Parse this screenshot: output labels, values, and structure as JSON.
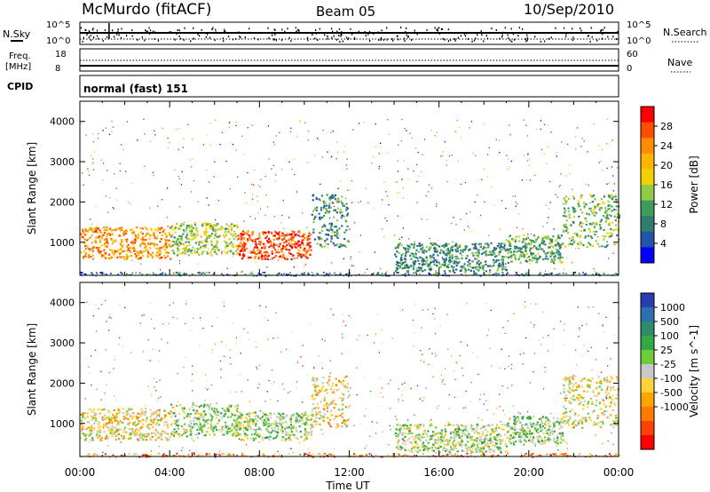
{
  "header": {
    "station": "McMurdo (fitACF)",
    "beam": "Beam 05",
    "date": "10/Sep/2010"
  },
  "top_panel": {
    "left_label": "N.Sky",
    "right_label": "N.Search",
    "left_ticks": [
      "10^5",
      "10^0"
    ],
    "right_ticks": [
      "10^5",
      "10^0"
    ]
  },
  "freq_panel": {
    "left_label_1": "Freq.",
    "left_label_2": "[MHz]",
    "right_label": "Nave",
    "left_ticks": [
      "18",
      "8"
    ],
    "right_ticks": [
      "60",
      "0"
    ]
  },
  "cpid": {
    "label": "CPID",
    "value": "normal (fast) 151"
  },
  "x_axis": {
    "title": "Time UT",
    "ticks": [
      "00:00",
      "04:00",
      "08:00",
      "12:00",
      "16:00",
      "20:00",
      "00:00"
    ]
  },
  "colorbar_power": {
    "label": "Power [dB]",
    "ticks": [
      "28",
      "24",
      "20",
      "16",
      "12",
      "8",
      "4"
    ],
    "colors": [
      "#ff0000",
      "#ff4d00",
      "#ff8c00",
      "#ffb400",
      "#f5d000",
      "#8fcc4a",
      "#3d9c5a",
      "#2e7d6e",
      "#2255aa",
      "#0000ff"
    ]
  },
  "colorbar_velocity": {
    "label": "Velocity [m s^-1]",
    "ticks": [
      "1000",
      "500",
      "100",
      "25",
      "-25",
      "-100",
      "-500",
      "-1000"
    ],
    "colors": [
      "#2a3db0",
      "#2e6fb0",
      "#2f8c6a",
      "#33a845",
      "#6ccc3a",
      "#c8c8c8",
      "#ffd23c",
      "#ffa500",
      "#ff7a00",
      "#ff4000",
      "#ff0000"
    ]
  },
  "chart_data": [
    {
      "type": "heatmap",
      "title": "Power",
      "xlabel": "Time UT",
      "ylabel": "Slant Range [km]",
      "xlim_hours": [
        0,
        24
      ],
      "ylim": [
        180,
        4500
      ],
      "yticks": [
        1000,
        2000,
        3000,
        4000
      ],
      "colorbar_range": [
        0,
        30
      ],
      "regions": [
        {
          "t0": 0.0,
          "t1": 4.0,
          "r0": 600,
          "r1": 1400,
          "value": 22
        },
        {
          "t0": 4.0,
          "t1": 7.0,
          "r0": 700,
          "r1": 1500,
          "value": 14
        },
        {
          "t0": 7.0,
          "t1": 10.3,
          "r0": 600,
          "r1": 1300,
          "value": 26
        },
        {
          "t0": 10.3,
          "t1": 12.0,
          "r0": 900,
          "r1": 2200,
          "value": 9
        },
        {
          "t0": 14.0,
          "t1": 19.0,
          "r0": 300,
          "r1": 1000,
          "value": 9
        },
        {
          "t0": 19.0,
          "t1": 21.5,
          "r0": 500,
          "r1": 1200,
          "value": 11
        },
        {
          "t0": 21.5,
          "t1": 24.0,
          "r0": 900,
          "r1": 2200,
          "value": 12
        }
      ]
    },
    {
      "type": "heatmap",
      "title": "Velocity",
      "xlabel": "Time UT",
      "ylabel": "Slant Range [km]",
      "xlim_hours": [
        0,
        24
      ],
      "ylim": [
        180,
        4500
      ],
      "yticks": [
        1000,
        2000,
        3000,
        4000
      ],
      "colorbar_range": [
        -1000,
        1000
      ],
      "regions": [
        {
          "t0": 0.0,
          "t1": 4.0,
          "r0": 600,
          "r1": 1400,
          "value": -150
        },
        {
          "t0": 4.0,
          "t1": 7.0,
          "r0": 700,
          "r1": 1500,
          "value": 120
        },
        {
          "t0": 7.0,
          "t1": 10.3,
          "r0": 600,
          "r1": 1300,
          "value": 80
        },
        {
          "t0": 10.3,
          "t1": 12.0,
          "r0": 900,
          "r1": 2200,
          "value": -200
        },
        {
          "t0": 14.0,
          "t1": 19.0,
          "r0": 300,
          "r1": 1000,
          "value": 60
        },
        {
          "t0": 19.0,
          "t1": 21.5,
          "r0": 500,
          "r1": 1200,
          "value": 150
        },
        {
          "t0": 21.5,
          "t1": 24.0,
          "r0": 900,
          "r1": 2200,
          "value": -80
        }
      ]
    }
  ]
}
